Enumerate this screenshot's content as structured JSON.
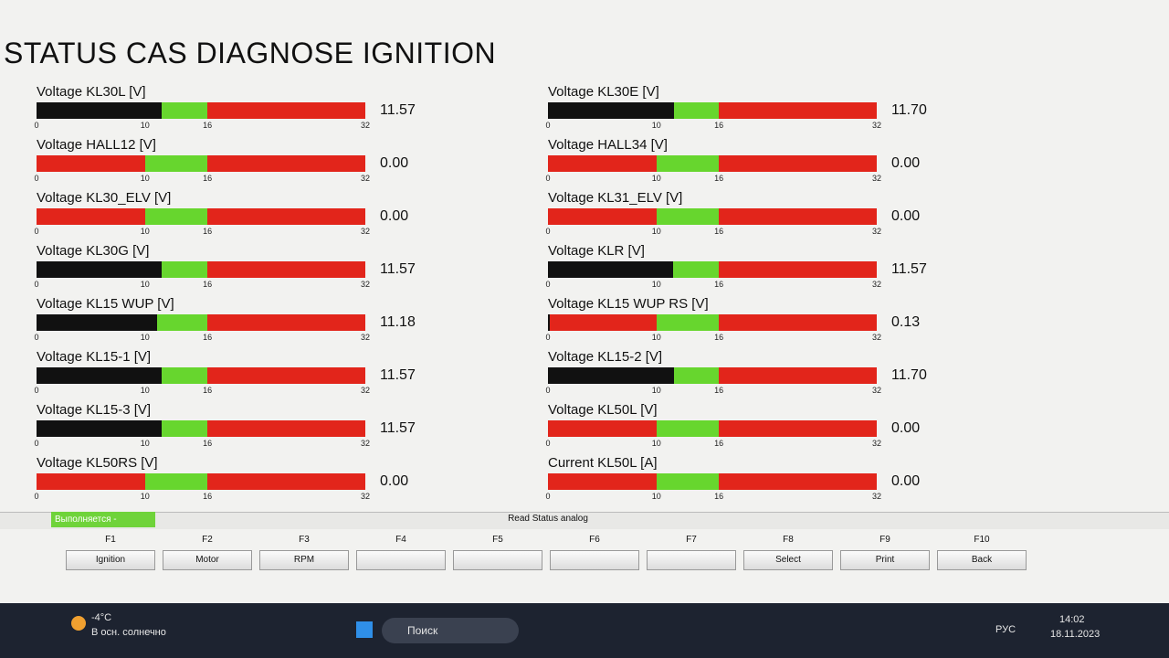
{
  "window": {
    "title": "STATUS CAS DIAGNOSE IGNITION"
  },
  "scale": {
    "min": 0,
    "max": 32,
    "ticks": [
      0,
      10,
      16,
      32
    ],
    "green_zone": [
      10,
      16
    ]
  },
  "gauges": {
    "left": [
      {
        "label": "Voltage KL30L [V]",
        "value": 11.57,
        "value_label": "11.57"
      },
      {
        "label": "Voltage HALL12 [V]",
        "value": 0,
        "value_label": "0.00"
      },
      {
        "label": "Voltage KL30_ELV [V]",
        "value": 0,
        "value_label": "0.00"
      },
      {
        "label": "Voltage KL30G [V]",
        "value": 11.57,
        "value_label": "11.57"
      },
      {
        "label": "Voltage KL15 WUP [V]",
        "value": 11.18,
        "value_label": "11.18"
      },
      {
        "label": "Voltage KL15-1 [V]",
        "value": 11.57,
        "value_label": "11.57"
      },
      {
        "label": "Voltage KL15-3 [V]",
        "value": 11.57,
        "value_label": "11.57"
      },
      {
        "label": "Voltage KL50RS [V]",
        "value": 0,
        "value_label": "0.00"
      }
    ],
    "right": [
      {
        "label": "Voltage KL30E [V]",
        "value": 11.7,
        "value_label": "11.70"
      },
      {
        "label": "Voltage HALL34 [V]",
        "value": 0,
        "value_label": "0.00"
      },
      {
        "label": "Voltage KL31_ELV [V]",
        "value": 0,
        "value_label": "0.00"
      },
      {
        "label": "Voltage KLR [V]",
        "value": 11.57,
        "value_label": "11.57"
      },
      {
        "label": "Voltage KL15 WUP RS [V]",
        "value": 0.13,
        "value_label": "0.13"
      },
      {
        "label": "Voltage KL15-2 [V]",
        "value": 11.7,
        "value_label": "11.70"
      },
      {
        "label": "Voltage KL50L [V]",
        "value": 0,
        "value_label": "0.00"
      },
      {
        "label": "Current KL50L [A]",
        "value": 0,
        "value_label": "0.00"
      }
    ]
  },
  "status": {
    "running": "Выполняется -",
    "text": "Read Status analog"
  },
  "function_keys": [
    {
      "key": "F1",
      "label": "Ignition"
    },
    {
      "key": "F2",
      "label": "Motor"
    },
    {
      "key": "F3",
      "label": "RPM"
    },
    {
      "key": "F4"
    },
    {
      "key": "F5"
    },
    {
      "key": "F6"
    },
    {
      "key": "F7"
    },
    {
      "key": "F8",
      "label": "Select"
    },
    {
      "key": "F9",
      "label": "Print"
    },
    {
      "key": "F10",
      "label": "Back"
    }
  ],
  "taskbar": {
    "temperature": "-4°C",
    "weather": "В осн. солнечно",
    "search": "Поиск",
    "language": "РУС",
    "time": "14:02",
    "date": "18.11.2023"
  }
}
